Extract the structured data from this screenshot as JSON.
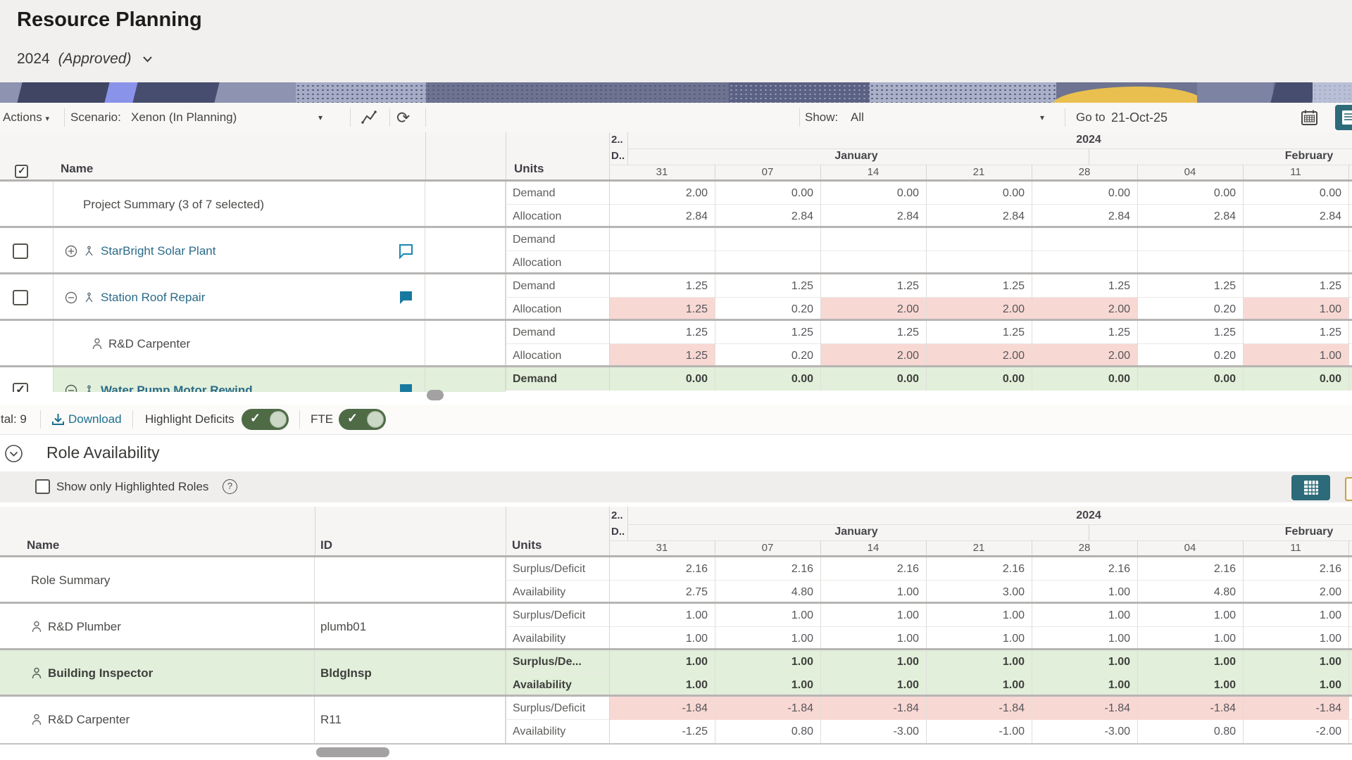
{
  "page": {
    "title": "Resource Planning",
    "plan_year": "2024",
    "plan_status": "(Approved)"
  },
  "toolbar": {
    "actions": "Actions",
    "scenario_label": "Scenario:",
    "scenario_value": "Xenon (In Planning)",
    "show_label": "Show:",
    "show_value": "All",
    "goto_label": "Go to",
    "goto_value": "21-Oct-25"
  },
  "timeline": {
    "year_trunc": "2..",
    "month_trunc": "D..",
    "year": "2024",
    "jan": "January",
    "feb": "February",
    "days": [
      "31",
      "07",
      "14",
      "21",
      "28",
      "04",
      "11"
    ]
  },
  "projects_table": {
    "name_header": "Name",
    "units_header": "Units",
    "rows": [
      {
        "name": "Project Summary (3 of 7 selected)",
        "kind": "summary",
        "subrows": [
          {
            "label": "Demand",
            "cells": [
              {
                "t": "2.00"
              },
              {
                "t": "0.00"
              },
              {
                "t": "0.00"
              },
              {
                "t": "0.00"
              },
              {
                "t": "0.00"
              },
              {
                "t": "0.00"
              },
              {
                "t": "0.00"
              }
            ]
          },
          {
            "label": "Allocation",
            "cells": [
              {
                "t": "2.84"
              },
              {
                "t": "2.84"
              },
              {
                "t": "2.84"
              },
              {
                "t": "2.84"
              },
              {
                "t": "2.84"
              },
              {
                "t": "2.84"
              },
              {
                "t": "2.84"
              }
            ]
          }
        ]
      },
      {
        "name": "StarBright Solar Plant",
        "kind": "project",
        "checked": false,
        "expand": "plus",
        "comment": "outline",
        "subrows": [
          {
            "label": "Demand",
            "cells": [
              {
                "t": ""
              },
              {
                "t": ""
              },
              {
                "t": ""
              },
              {
                "t": ""
              },
              {
                "t": ""
              },
              {
                "t": ""
              },
              {
                "t": ""
              }
            ]
          },
          {
            "label": "Allocation",
            "cells": [
              {
                "t": ""
              },
              {
                "t": ""
              },
              {
                "t": ""
              },
              {
                "t": ""
              },
              {
                "t": ""
              },
              {
                "t": ""
              },
              {
                "t": ""
              }
            ]
          }
        ]
      },
      {
        "name": "Station Roof Repair",
        "kind": "project",
        "checked": false,
        "expand": "minus",
        "comment": "filled",
        "subrows": [
          {
            "label": "Demand",
            "cells": [
              {
                "t": "1.25"
              },
              {
                "t": "1.25"
              },
              {
                "t": "1.25"
              },
              {
                "t": "1.25"
              },
              {
                "t": "1.25"
              },
              {
                "t": "1.25"
              },
              {
                "t": "1.25"
              }
            ]
          },
          {
            "label": "Allocation",
            "cells": [
              {
                "t": "1.25",
                "f": 1
              },
              {
                "t": "0.20"
              },
              {
                "t": "2.00",
                "f": 1
              },
              {
                "t": "2.00",
                "f": 1
              },
              {
                "t": "2.00",
                "f": 1
              },
              {
                "t": "0.20"
              },
              {
                "t": "1.00",
                "f": 1
              }
            ]
          }
        ]
      },
      {
        "name": "R&D Carpenter",
        "kind": "resource",
        "subrows": [
          {
            "label": "Demand",
            "cells": [
              {
                "t": "1.25"
              },
              {
                "t": "1.25"
              },
              {
                "t": "1.25"
              },
              {
                "t": "1.25"
              },
              {
                "t": "1.25"
              },
              {
                "t": "1.25"
              },
              {
                "t": "1.25"
              }
            ]
          },
          {
            "label": "Allocation",
            "cells": [
              {
                "t": "1.25",
                "f": 1
              },
              {
                "t": "0.20"
              },
              {
                "t": "2.00",
                "f": 1
              },
              {
                "t": "2.00",
                "f": 1
              },
              {
                "t": "2.00",
                "f": 1
              },
              {
                "t": "0.20"
              },
              {
                "t": "1.00",
                "f": 1
              }
            ]
          }
        ]
      },
      {
        "name": "Water Pump Motor Rewind",
        "kind": "project",
        "checked": true,
        "expand": "minus",
        "comment": "filled",
        "highlighted": true,
        "subrows": [
          {
            "label": "Demand",
            "cells": [
              {
                "t": "0.00"
              },
              {
                "t": "0.00"
              },
              {
                "t": "0.00"
              },
              {
                "t": "0.00"
              },
              {
                "t": "0.00"
              },
              {
                "t": "0.00"
              },
              {
                "t": "0.00"
              }
            ]
          }
        ]
      }
    ]
  },
  "table_footer": {
    "total": "tal: 9",
    "download": "Download",
    "highlight_deficits": "Highlight Deficits",
    "fte": "FTE"
  },
  "role_section": {
    "title": "Role Availability",
    "filter_label": "Show only Highlighted Roles"
  },
  "roles_table": {
    "name_header": "Name",
    "id_header": "ID",
    "units_header": "Units",
    "rows": [
      {
        "name": "Role Summary",
        "id": "",
        "subrows": [
          {
            "label": "Surplus/Deficit",
            "cells": [
              {
                "t": "2.16"
              },
              {
                "t": "2.16"
              },
              {
                "t": "2.16"
              },
              {
                "t": "2.16"
              },
              {
                "t": "2.16"
              },
              {
                "t": "2.16"
              },
              {
                "t": "2.16"
              }
            ]
          },
          {
            "label": "Availability",
            "cells": [
              {
                "t": "2.75"
              },
              {
                "t": "4.80"
              },
              {
                "t": "1.00"
              },
              {
                "t": "3.00"
              },
              {
                "t": "1.00"
              },
              {
                "t": "4.80"
              },
              {
                "t": "2.00"
              }
            ]
          }
        ]
      },
      {
        "name": "R&D Plumber",
        "id": "plumb01",
        "subrows": [
          {
            "label": "Surplus/Deficit",
            "cells": [
              {
                "t": "1.00"
              },
              {
                "t": "1.00"
              },
              {
                "t": "1.00"
              },
              {
                "t": "1.00"
              },
              {
                "t": "1.00"
              },
              {
                "t": "1.00"
              },
              {
                "t": "1.00"
              }
            ]
          },
          {
            "label": "Availability",
            "cells": [
              {
                "t": "1.00"
              },
              {
                "t": "1.00"
              },
              {
                "t": "1.00"
              },
              {
                "t": "1.00"
              },
              {
                "t": "1.00"
              },
              {
                "t": "1.00"
              },
              {
                "t": "1.00"
              }
            ]
          }
        ]
      },
      {
        "name": "Building Inspector",
        "id": "BldgInsp",
        "highlighted": true,
        "subrows": [
          {
            "label": "Surplus/De...",
            "cells": [
              {
                "t": "1.00"
              },
              {
                "t": "1.00"
              },
              {
                "t": "1.00"
              },
              {
                "t": "1.00"
              },
              {
                "t": "1.00"
              },
              {
                "t": "1.00"
              },
              {
                "t": "1.00"
              }
            ]
          },
          {
            "label": "Availability",
            "cells": [
              {
                "t": "1.00"
              },
              {
                "t": "1.00"
              },
              {
                "t": "1.00"
              },
              {
                "t": "1.00"
              },
              {
                "t": "1.00"
              },
              {
                "t": "1.00"
              },
              {
                "t": "1.00"
              }
            ]
          }
        ]
      },
      {
        "name": "R&D Carpenter",
        "id": "R11",
        "subrows": [
          {
            "label": "Surplus/Deficit",
            "cells": [
              {
                "t": "-1.84",
                "f": 1
              },
              {
                "t": "-1.84",
                "f": 1
              },
              {
                "t": "-1.84",
                "f": 1
              },
              {
                "t": "-1.84",
                "f": 1
              },
              {
                "t": "-1.84",
                "f": 1
              },
              {
                "t": "-1.84",
                "f": 1
              },
              {
                "t": "-1.84",
                "f": 1
              }
            ]
          },
          {
            "label": "Availability",
            "cells": [
              {
                "t": "-1.25"
              },
              {
                "t": "0.80"
              },
              {
                "t": "-3.00"
              },
              {
                "t": "-1.00"
              },
              {
                "t": "-3.00"
              },
              {
                "t": "0.80"
              },
              {
                "t": "-2.00"
              }
            ]
          }
        ]
      }
    ]
  },
  "colors": {
    "accent_teal": "#2d6b7a",
    "link_teal": "#2b6b88",
    "deficit_bg": "#f8d8d3",
    "highlight_bg": "#e2efda",
    "toggle_on": "#4e6b45",
    "banner_yellow": "#e9c04f"
  }
}
